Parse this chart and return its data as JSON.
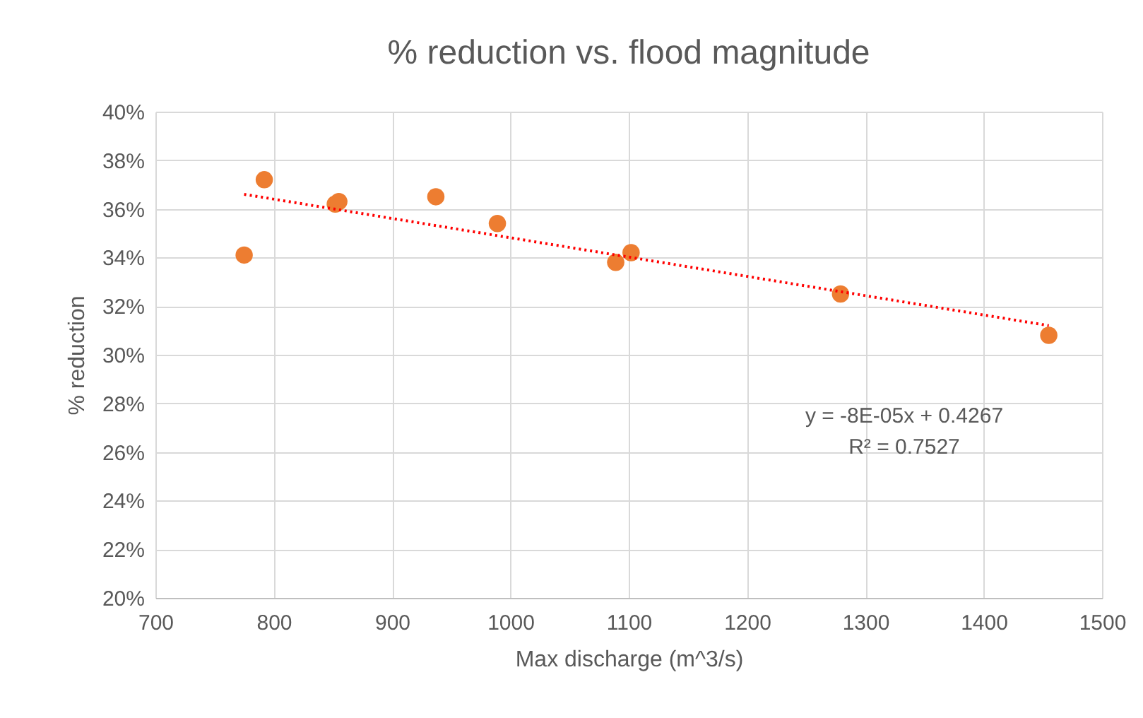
{
  "chart_data": {
    "type": "scatter",
    "title": "% reduction vs. flood magnitude",
    "xlabel": "Max discharge (m^3/s)",
    "ylabel": "% reduction",
    "series": [
      {
        "color": "#ed7d31",
        "x": [
          775,
          792,
          852,
          855,
          937,
          989,
          1089,
          1102,
          1279,
          1455
        ],
        "values": [
          34.1,
          37.2,
          36.2,
          36.3,
          36.5,
          35.4,
          33.8,
          34.2,
          32.5,
          30.8
        ]
      },
      {
        "type": "line",
        "color": "#ff0000",
        "line_style": "dotted",
        "marker": "none",
        "x": [
          775,
          1455
        ],
        "values": [
          36.6,
          31.2
        ]
      }
    ],
    "annotations": [
      "y = -8E-05x + 0.4267",
      "R² = 0.7527"
    ],
    "xlim": [
      700,
      1500
    ],
    "xticks": [
      700,
      800,
      900,
      1000,
      1100,
      1200,
      1300,
      1400,
      1500
    ],
    "ylim": [
      20,
      40
    ],
    "yticks": [
      {
        "value": 20,
        "label": "20%"
      },
      {
        "value": 22,
        "label": "22%"
      },
      {
        "value": 24,
        "label": "24%"
      },
      {
        "value": 26,
        "label": "26%"
      },
      {
        "value": 28,
        "label": "28%"
      },
      {
        "value": 30,
        "label": "30%"
      },
      {
        "value": 32,
        "label": "32%"
      },
      {
        "value": 34,
        "label": "34%"
      },
      {
        "value": 36,
        "label": "36%"
      },
      {
        "value": 38,
        "label": "38%"
      },
      {
        "value": 40,
        "label": "40%"
      }
    ],
    "grid": true,
    "marker": "circle"
  }
}
